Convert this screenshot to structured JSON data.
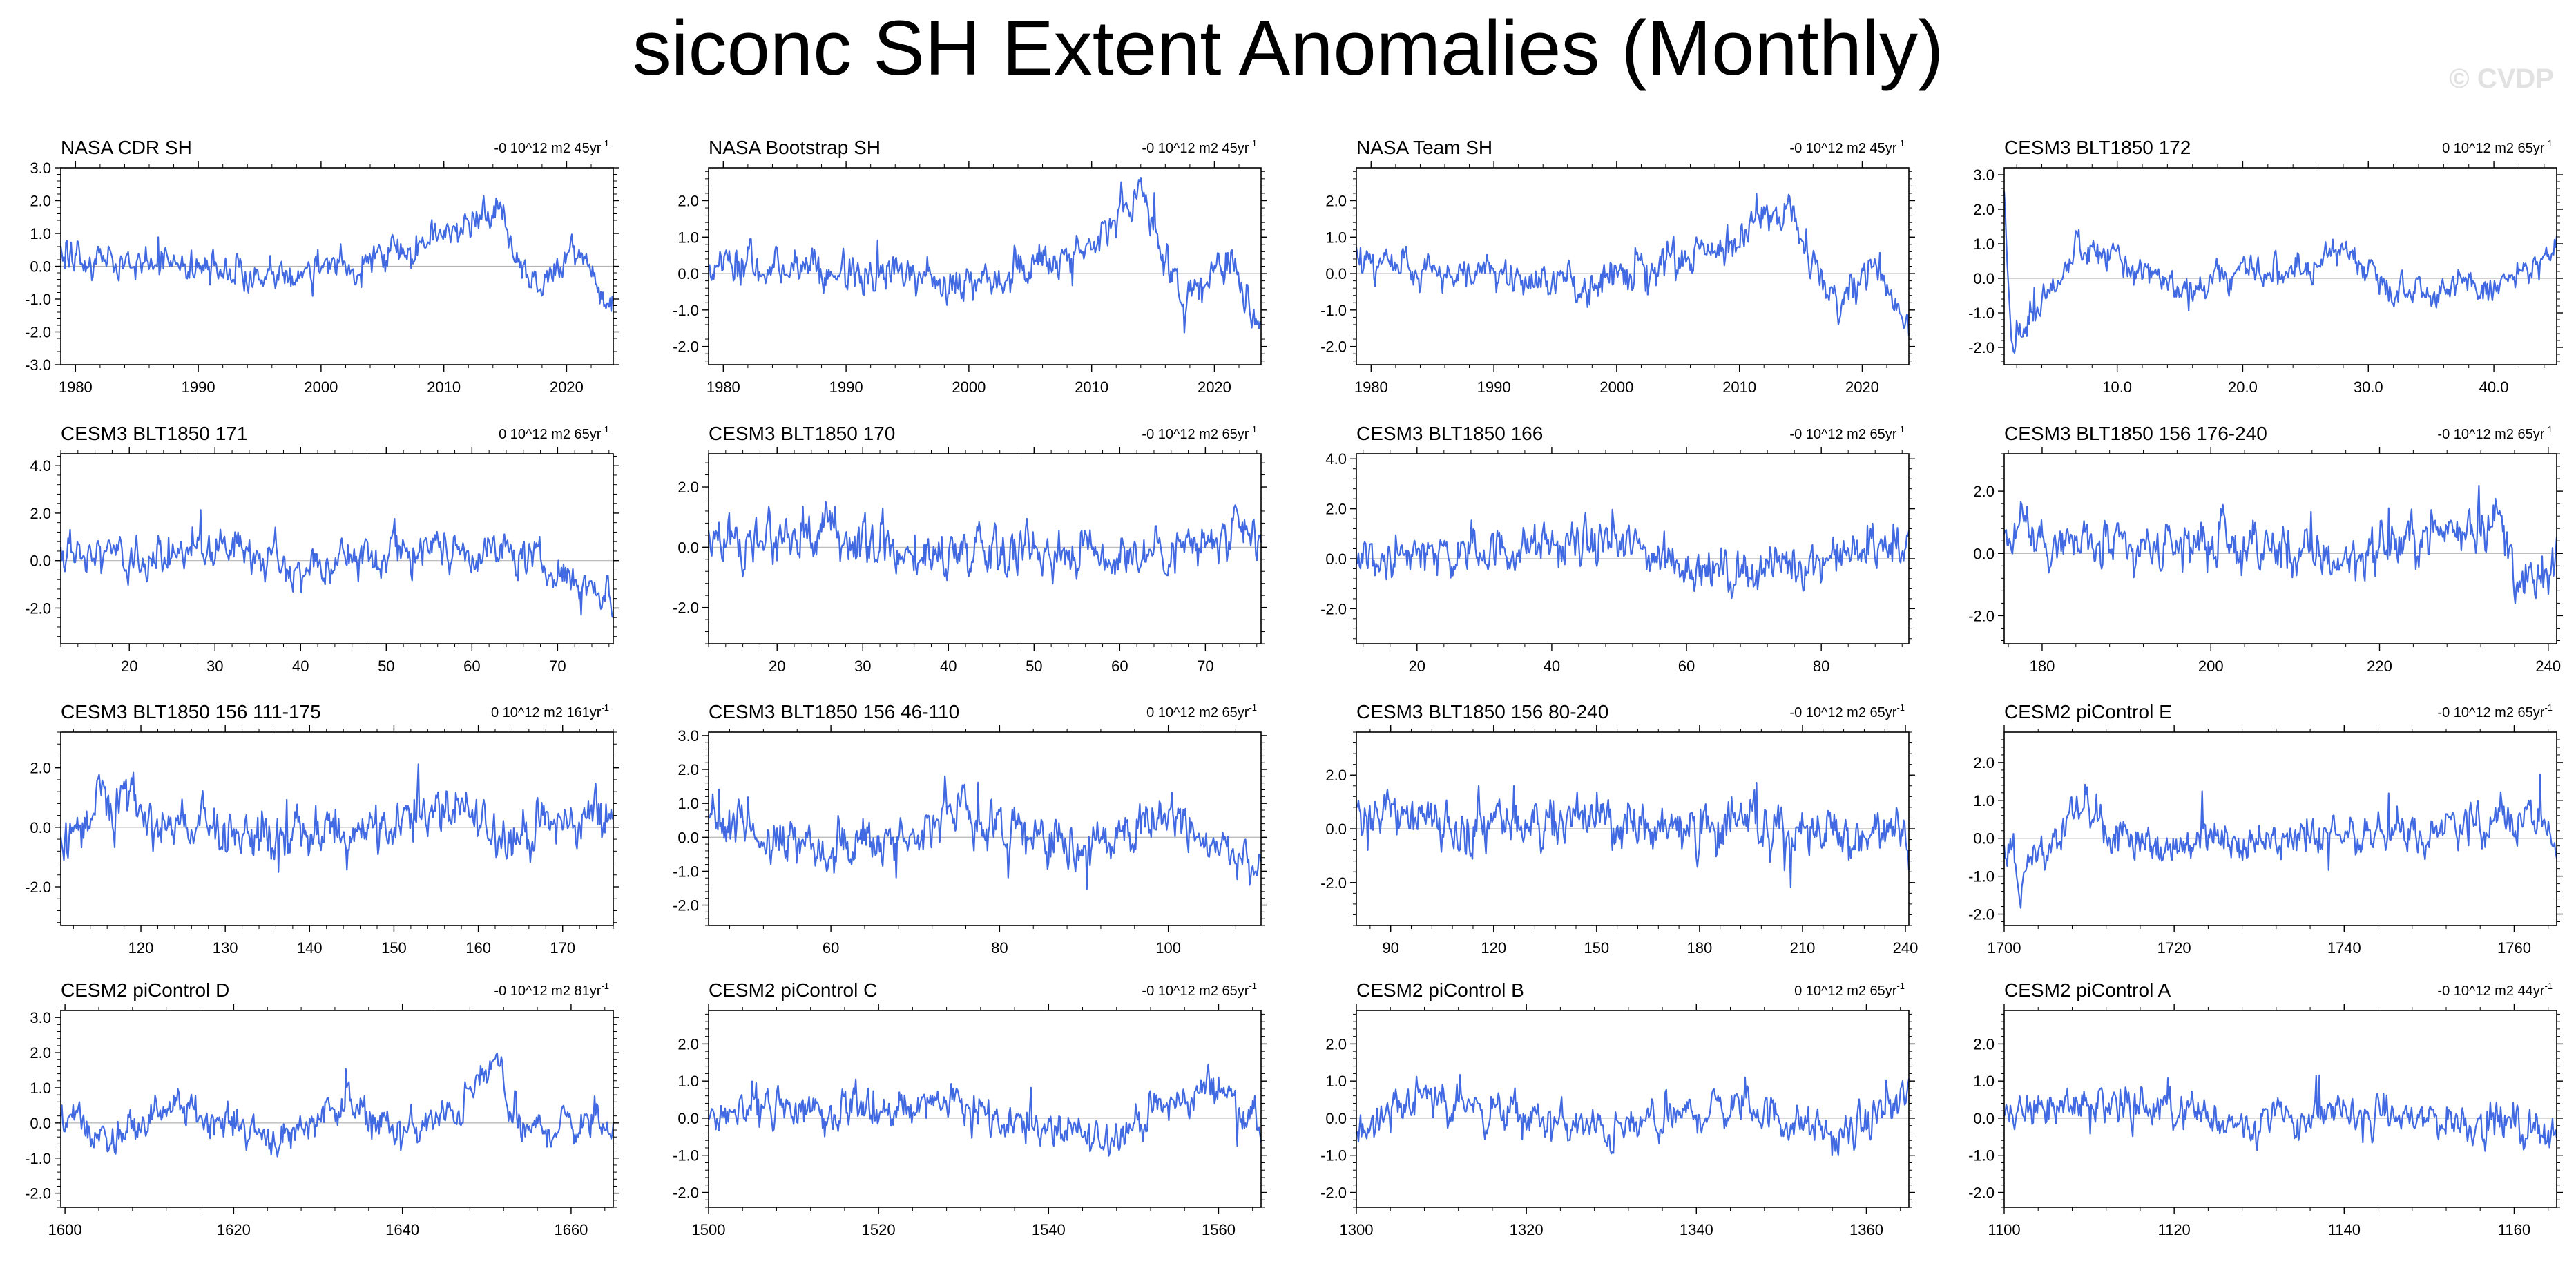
{
  "title": "siconc SH Extent Anomalies (Monthly)",
  "watermark": "© CVDP",
  "colors": {
    "line": "#4169e1",
    "axis": "#000000",
    "zero": "#b4b4b4"
  },
  "chart_data": [
    {
      "type": "line",
      "title": "NASA CDR SH",
      "stat": "-0 10^12 m2 45yr",
      "stat_sup": "-1",
      "xlim": [
        1978.8,
        2023.8
      ],
      "xticks": [
        1980,
        1990,
        2000,
        2010,
        2020
      ],
      "xtick_labels": [
        "1980",
        "1990",
        "2000",
        "2010",
        "2020"
      ],
      "ylim": [
        -3,
        3
      ],
      "yticks": [
        -3,
        -2,
        -1,
        0,
        1,
        2,
        3
      ],
      "ytick_labels": [
        "-3.0",
        "-2.0",
        "-1.0",
        "0.0",
        "1.0",
        "2.0",
        "3.0"
      ],
      "seed": 11,
      "amp": 0.45,
      "waypoints": [
        [
          1978.8,
          0.3
        ],
        [
          1990,
          0
        ],
        [
          2000,
          -0.2
        ],
        [
          2008,
          0.6
        ],
        [
          2014.5,
          1.9
        ],
        [
          2016.5,
          -0.2
        ],
        [
          2018,
          -0.6
        ],
        [
          2021,
          0.4
        ],
        [
          2023.8,
          -1.5
        ]
      ]
    },
    {
      "type": "line",
      "title": "NASA Bootstrap SH",
      "stat": "-0 10^12 m2 45yr",
      "stat_sup": "-1",
      "xlim": [
        1978.8,
        2023.8
      ],
      "xticks": [
        1980,
        1990,
        2000,
        2010,
        2020
      ],
      "xtick_labels": [
        "1980",
        "1990",
        "2000",
        "2010",
        "2020"
      ],
      "ylim": [
        -2.5,
        2.9
      ],
      "yticks": [
        -2,
        -1,
        0,
        1,
        2
      ],
      "ytick_labels": [
        "-2.0",
        "-1.0",
        "0.0",
        "1.0",
        "2.0"
      ],
      "seed": 12,
      "amp": 0.45,
      "waypoints": [
        [
          1978.8,
          0.3
        ],
        [
          1990,
          0
        ],
        [
          2000,
          -0.2
        ],
        [
          2008,
          0.6
        ],
        [
          2014.5,
          1.9
        ],
        [
          2016.5,
          -0.2
        ],
        [
          2018,
          -0.8
        ],
        [
          2021,
          0.4
        ],
        [
          2023.8,
          -1.5
        ]
      ]
    },
    {
      "type": "line",
      "title": "NASA Team SH",
      "stat": "-0 10^12 m2 45yr",
      "stat_sup": "-1",
      "xlim": [
        1978.8,
        2023.8
      ],
      "xticks": [
        1980,
        1990,
        2000,
        2010,
        2020
      ],
      "xtick_labels": [
        "1980",
        "1990",
        "2000",
        "2010",
        "2020"
      ],
      "ylim": [
        -2.5,
        2.9
      ],
      "yticks": [
        -2,
        -1,
        0,
        1,
        2
      ],
      "ytick_labels": [
        "-2.0",
        "-1.0",
        "0.0",
        "1.0",
        "2.0"
      ],
      "seed": 13,
      "amp": 0.45,
      "waypoints": [
        [
          1978.8,
          0.3
        ],
        [
          1990,
          0
        ],
        [
          2000,
          -0.2
        ],
        [
          2008,
          0.6
        ],
        [
          2014.5,
          1.9
        ],
        [
          2016.5,
          -0.2
        ],
        [
          2018,
          -0.8
        ],
        [
          2021,
          0.4
        ],
        [
          2023.8,
          -1.5
        ]
      ]
    },
    {
      "type": "line",
      "title": "CESM3 BLT1850 172",
      "stat": "0 10^12 m2 65yr",
      "stat_sup": "-1",
      "xlim": [
        1,
        45
      ],
      "xticks": [
        10,
        20,
        30,
        40
      ],
      "xtick_labels": [
        "10.0",
        "20.0",
        "30.0",
        "40.0"
      ],
      "ylim": [
        -2.5,
        3.2
      ],
      "yticks": [
        -2,
        -1,
        0,
        1,
        2,
        3
      ],
      "ytick_labels": [
        "-2.0",
        "-1.0",
        "0.0",
        "1.0",
        "2.0",
        "3.0"
      ],
      "seed": 14,
      "amp": 0.4,
      "waypoints": [
        [
          1,
          2.5
        ],
        [
          1.6,
          -1.7
        ],
        [
          4,
          -0.8
        ],
        [
          7,
          1.0
        ],
        [
          12,
          0.2
        ],
        [
          16,
          -0.4
        ],
        [
          20,
          0.4
        ],
        [
          23,
          0
        ],
        [
          28,
          0.8
        ],
        [
          32,
          -0.2
        ],
        [
          36,
          -0.3
        ],
        [
          40,
          -0.3
        ],
        [
          45,
          0.7
        ]
      ]
    },
    {
      "type": "line",
      "title": "CESM3 BLT1850 171",
      "stat": "0 10^12 m2 65yr",
      "stat_sup": "-1",
      "xlim": [
        12,
        76.5
      ],
      "xticks": [
        20,
        30,
        40,
        50,
        60,
        70
      ],
      "xtick_labels": [
        "20",
        "30",
        "40",
        "50",
        "60",
        "70"
      ],
      "ylim": [
        -3.5,
        4.5
      ],
      "yticks": [
        -2,
        0,
        2,
        4
      ],
      "ytick_labels": [
        "-2.0",
        "0.0",
        "2.0",
        "4.0"
      ],
      "seed": 21,
      "amp": 0.7,
      "waypoints": [
        [
          12,
          0.4
        ],
        [
          25,
          0
        ],
        [
          32,
          0.6
        ],
        [
          40,
          -0.3
        ],
        [
          56,
          0.6
        ],
        [
          65,
          0.3
        ],
        [
          76.5,
          -1.5
        ]
      ]
    },
    {
      "type": "line",
      "title": "CESM3 BLT1850 170",
      "stat": "-0 10^12 m2 65yr",
      "stat_sup": "-1",
      "xlim": [
        12,
        76.5
      ],
      "xticks": [
        20,
        30,
        40,
        50,
        60,
        70
      ],
      "xtick_labels": [
        "20",
        "30",
        "40",
        "50",
        "60",
        "70"
      ],
      "ylim": [
        -3.2,
        3.1
      ],
      "yticks": [
        -2,
        0,
        2
      ],
      "ytick_labels": [
        "-2.0",
        "0.0",
        "2.0"
      ],
      "seed": 22,
      "amp": 0.7,
      "waypoints": [
        [
          12,
          0.3
        ],
        [
          25,
          0.5
        ],
        [
          38,
          -0.3
        ],
        [
          45,
          0.2
        ],
        [
          60,
          -0.2
        ],
        [
          76.5,
          0.3
        ]
      ]
    },
    {
      "type": "line",
      "title": "CESM3 BLT1850 166",
      "stat": "-0 10^12 m2 65yr",
      "stat_sup": "-1",
      "xlim": [
        11,
        93
      ],
      "xticks": [
        20,
        40,
        60,
        80
      ],
      "xtick_labels": [
        "20",
        "40",
        "60",
        "80"
      ],
      "ylim": [
        -3.4,
        4.2
      ],
      "yticks": [
        -2,
        0,
        2,
        4
      ],
      "ytick_labels": [
        "-2.0",
        "0.0",
        "2.0",
        "4.0"
      ],
      "seed": 23,
      "amp": 0.75,
      "waypoints": [
        [
          11,
          0
        ],
        [
          30,
          0.3
        ],
        [
          50,
          0.6
        ],
        [
          65,
          -0.6
        ],
        [
          80,
          0
        ],
        [
          93,
          0.6
        ]
      ]
    },
    {
      "type": "line",
      "title": "CESM3 BLT1850 156 176-240",
      "stat": "-0 10^12 m2 65yr",
      "stat_sup": "-1",
      "xlim": [
        175.5,
        241
      ],
      "xticks": [
        180,
        200,
        220,
        240
      ],
      "xtick_labels": [
        "180",
        "200",
        "220",
        "240"
      ],
      "ylim": [
        -2.9,
        3.2
      ],
      "yticks": [
        -2,
        0,
        2
      ],
      "ytick_labels": [
        "-2.0",
        "0.0",
        "2.0"
      ],
      "seed": 24,
      "amp": 0.7,
      "waypoints": [
        [
          175.5,
          0.6
        ],
        [
          190,
          0
        ],
        [
          200,
          0.4
        ],
        [
          215,
          -0.2
        ],
        [
          234,
          1.2
        ],
        [
          237,
          -1.2
        ],
        [
          241,
          -0.6
        ]
      ]
    },
    {
      "type": "line",
      "title": "CESM3 BLT1850 156 111-175",
      "stat": "0 10^12 m2 161yr",
      "stat_sup": "-1",
      "xlim": [
        110.5,
        176
      ],
      "xticks": [
        120,
        130,
        140,
        150,
        160,
        170
      ],
      "xtick_labels": [
        "120",
        "130",
        "140",
        "150",
        "160",
        "170"
      ],
      "ylim": [
        -3.3,
        3.2
      ],
      "yticks": [
        -2,
        0,
        2
      ],
      "ytick_labels": [
        "-2.0",
        "0.0",
        "2.0"
      ],
      "seed": 31,
      "amp": 0.75,
      "waypoints": [
        [
          110.5,
          -0.5
        ],
        [
          115,
          0.8
        ],
        [
          125,
          0
        ],
        [
          140,
          -0.4
        ],
        [
          155,
          0.6
        ],
        [
          165,
          -0.2
        ],
        [
          176,
          0.5
        ]
      ]
    },
    {
      "type": "line",
      "title": "CESM3 BLT1850 156 46-110",
      "stat": "0 10^12 m2 65yr",
      "stat_sup": "-1",
      "xlim": [
        45.5,
        111
      ],
      "xticks": [
        60,
        80,
        100
      ],
      "xtick_labels": [
        "60",
        "80",
        "100"
      ],
      "ylim": [
        -2.6,
        3.1
      ],
      "yticks": [
        -2,
        -1,
        0,
        1,
        2,
        3
      ],
      "ytick_labels": [
        "-2.0",
        "-1.0",
        "0.0",
        "1.0",
        "2.0",
        "3.0"
      ],
      "seed": 32,
      "amp": 0.6,
      "waypoints": [
        [
          45.5,
          0.5
        ],
        [
          60,
          -0.2
        ],
        [
          75,
          0.5
        ],
        [
          90,
          -0.4
        ],
        [
          100,
          0.8
        ],
        [
          111,
          -1
        ]
      ]
    },
    {
      "type": "line",
      "title": "CESM3 BLT1850 156 80-240",
      "stat": "-0 10^12 m2 65yr",
      "stat_sup": "-1",
      "xlim": [
        80,
        241
      ],
      "xticks": [
        90,
        120,
        150,
        180,
        210,
        240
      ],
      "xtick_labels": [
        "90",
        "120",
        "150",
        "180",
        "210",
        "240"
      ],
      "ylim": [
        -3.6,
        3.6
      ],
      "yticks": [
        -2,
        0,
        2
      ],
      "ytick_labels": [
        "-2.0",
        "0.0",
        "2.0"
      ],
      "seed": 33,
      "amp": 0.85,
      "waypoints": [
        [
          80,
          0.5
        ],
        [
          120,
          0
        ],
        [
          160,
          0.2
        ],
        [
          200,
          0
        ],
        [
          241,
          -0.2
        ]
      ]
    },
    {
      "type": "line",
      "title": "CESM2 piControl E",
      "stat": "-0 10^12 m2 65yr",
      "stat_sup": "-1",
      "xlim": [
        1700,
        1765
      ],
      "xticks": [
        1700,
        1720,
        1740,
        1760
      ],
      "xtick_labels": [
        "1700",
        "1720",
        "1740",
        "1760"
      ],
      "ylim": [
        -2.3,
        2.8
      ],
      "yticks": [
        -2,
        -1,
        0,
        1,
        2
      ],
      "ytick_labels": [
        "-2.0",
        "-1.0",
        "0.0",
        "1.0",
        "2.0"
      ],
      "seed": 34,
      "amp": 0.45,
      "waypoints": [
        [
          1700,
          0
        ],
        [
          1702,
          -1.2
        ],
        [
          1705,
          -0.2
        ],
        [
          1709,
          1.0
        ],
        [
          1713,
          0
        ],
        [
          1725,
          -0.2
        ],
        [
          1740,
          0
        ],
        [
          1750,
          0.2
        ],
        [
          1762,
          0.6
        ],
        [
          1765,
          -0.4
        ]
      ]
    },
    {
      "type": "line",
      "title": "CESM2 piControl D",
      "stat": "-0 10^12 m2 81yr",
      "stat_sup": "-1",
      "xlim": [
        1599.5,
        1665
      ],
      "xticks": [
        1600,
        1620,
        1640,
        1660
      ],
      "xtick_labels": [
        "1600",
        "1620",
        "1640",
        "1660"
      ],
      "ylim": [
        -2.4,
        3.2
      ],
      "yticks": [
        -2,
        -1,
        0,
        1,
        2,
        3
      ],
      "ytick_labels": [
        "-2.0",
        "-1.0",
        "0.0",
        "1.0",
        "2.0",
        "3.0"
      ],
      "seed": 41,
      "amp": 0.45,
      "waypoints": [
        [
          1599.5,
          0.3
        ],
        [
          1605,
          -0.4
        ],
        [
          1612,
          0.5
        ],
        [
          1620,
          0
        ],
        [
          1626,
          -0.5
        ],
        [
          1632,
          0.6
        ],
        [
          1640,
          -0.3
        ],
        [
          1646,
          0.2
        ],
        [
          1651,
          1.7
        ],
        [
          1654,
          -0.3
        ],
        [
          1660,
          0
        ],
        [
          1665,
          0
        ]
      ]
    },
    {
      "type": "line",
      "title": "CESM2 piControl C",
      "stat": "-0 10^12 m2 65yr",
      "stat_sup": "-1",
      "xlim": [
        1500,
        1565
      ],
      "xticks": [
        1500,
        1520,
        1540,
        1560
      ],
      "xtick_labels": [
        "1500",
        "1520",
        "1540",
        "1560"
      ],
      "ylim": [
        -2.4,
        2.9
      ],
      "yticks": [
        -2,
        -1,
        0,
        1,
        2
      ],
      "ytick_labels": [
        "-2.0",
        "-1.0",
        "0.0",
        "1.0",
        "2.0"
      ],
      "seed": 42,
      "amp": 0.45,
      "waypoints": [
        [
          1500,
          0
        ],
        [
          1510,
          0.2
        ],
        [
          1530,
          0.3
        ],
        [
          1545,
          -0.6
        ],
        [
          1555,
          0.4
        ],
        [
          1560,
          0.9
        ],
        [
          1565,
          -0.3
        ]
      ]
    },
    {
      "type": "line",
      "title": "CESM2 piControl B",
      "stat": "0 10^12 m2 65yr",
      "stat_sup": "-1",
      "xlim": [
        1300,
        1365
      ],
      "xticks": [
        1300,
        1320,
        1340,
        1360
      ],
      "xtick_labels": [
        "1300",
        "1320",
        "1340",
        "1360"
      ],
      "ylim": [
        -2.4,
        2.9
      ],
      "yticks": [
        -2,
        -1,
        0,
        1,
        2
      ],
      "ytick_labels": [
        "-2.0",
        "-1.0",
        "0.0",
        "1.0",
        "2.0"
      ],
      "seed": 43,
      "amp": 0.45,
      "waypoints": [
        [
          1300,
          -0.4
        ],
        [
          1308,
          0.6
        ],
        [
          1320,
          0
        ],
        [
          1330,
          -0.4
        ],
        [
          1345,
          0.4
        ],
        [
          1357,
          -0.6
        ],
        [
          1365,
          0.6
        ]
      ]
    },
    {
      "type": "line",
      "title": "CESM2 piControl A",
      "stat": "-0 10^12 m2 44yr",
      "stat_sup": "-1",
      "xlim": [
        1100,
        1165
      ],
      "xticks": [
        1100,
        1120,
        1140,
        1160
      ],
      "xtick_labels": [
        "1100",
        "1120",
        "1140",
        "1160"
      ],
      "ylim": [
        -2.4,
        2.9
      ],
      "yticks": [
        -2,
        -1,
        0,
        1,
        2
      ],
      "ytick_labels": [
        "-2.0",
        "-1.0",
        "0.0",
        "1.0",
        "2.0"
      ],
      "seed": 44,
      "amp": 0.45,
      "waypoints": [
        [
          1100,
          0
        ],
        [
          1114,
          0.5
        ],
        [
          1125,
          -0.2
        ],
        [
          1140,
          0.1
        ],
        [
          1150,
          0
        ],
        [
          1165,
          -0.3
        ]
      ]
    }
  ]
}
